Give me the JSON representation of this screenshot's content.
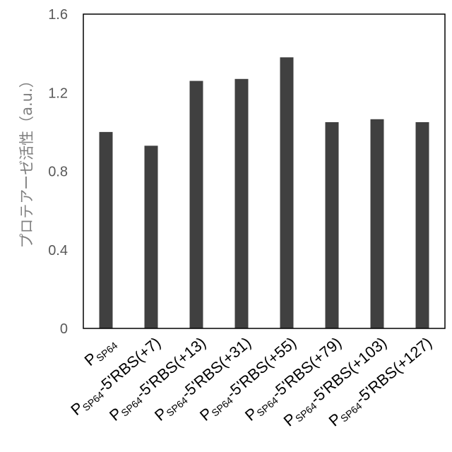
{
  "chart_data": {
    "type": "bar",
    "categories": [
      {
        "main": "P",
        "sub": "SP64",
        "rest": ""
      },
      {
        "main": "P",
        "sub": "SP64",
        "rest": "-5'RBS(+7)"
      },
      {
        "main": "P",
        "sub": "SP64",
        "rest": "-5'RBS(+13)"
      },
      {
        "main": "P",
        "sub": "SP64",
        "rest": "-5'RBS(+31)"
      },
      {
        "main": "P",
        "sub": "SP64",
        "rest": "-5'RBS(+55)"
      },
      {
        "main": "P",
        "sub": "SP64",
        "rest": "-5'RBS(+79)"
      },
      {
        "main": "P",
        "sub": "SP64",
        "rest": "-5'RBS(+103)"
      },
      {
        "main": "P",
        "sub": "SP64",
        "rest": "-5'RBS(+127)"
      }
    ],
    "values": [
      1.0,
      0.93,
      1.26,
      1.27,
      1.38,
      1.05,
      1.065,
      1.05
    ],
    "title": "",
    "xlabel": "",
    "ylabel": "プロテアーゼ活性（a.u.）",
    "ylim": [
      0,
      1.6
    ],
    "yticks": [
      "0",
      "0.4",
      "0.8",
      "1.2",
      "1.6"
    ],
    "grid": false,
    "bar_color": "#404040",
    "axis_color": "#000000"
  }
}
